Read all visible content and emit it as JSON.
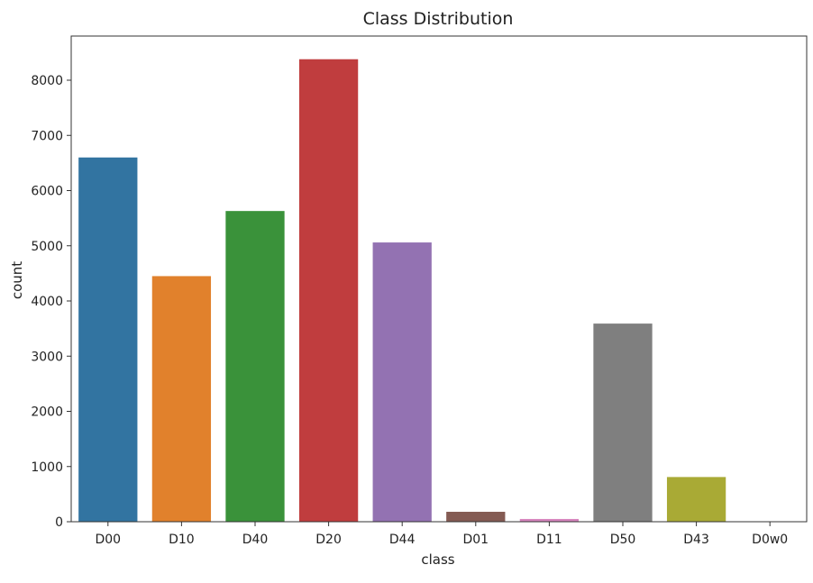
{
  "chart_data": {
    "type": "bar",
    "title": "Class Distribution",
    "xlabel": "class",
    "ylabel": "count",
    "categories": [
      "D00",
      "D10",
      "D40",
      "D20",
      "D44",
      "D01",
      "D11",
      "D50",
      "D43",
      "D0w0"
    ],
    "values": [
      6600,
      4450,
      5630,
      8380,
      5060,
      180,
      50,
      3590,
      810,
      4
    ],
    "colors": [
      "#3274a1",
      "#e1812c",
      "#3a923a",
      "#c03d3e",
      "#9372b2",
      "#845b53",
      "#d684bd",
      "#7f7f7f",
      "#a9aa35",
      "#2ebdcc"
    ],
    "ylim": [
      0,
      8800
    ],
    "yticks": [
      0,
      1000,
      2000,
      3000,
      4000,
      5000,
      6000,
      7000,
      8000
    ],
    "grid": false,
    "legend": "none"
  }
}
